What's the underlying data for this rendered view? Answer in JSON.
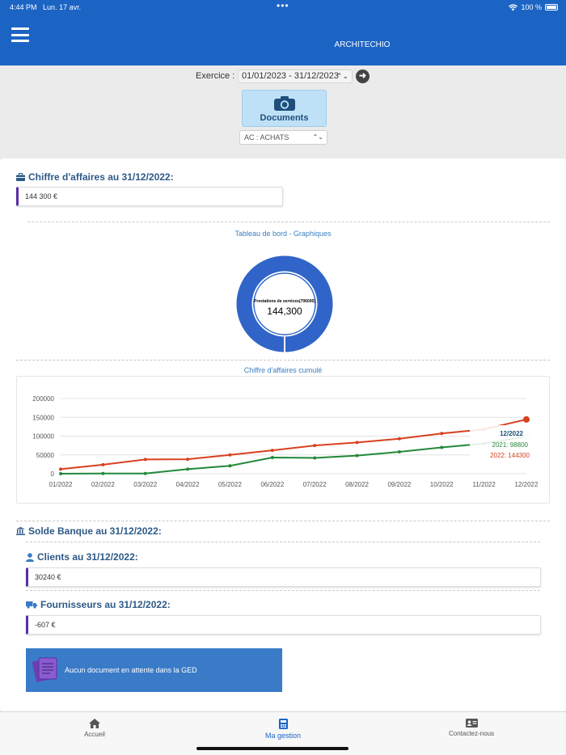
{
  "status_bar": {
    "time": "4:44 PM",
    "date": "Lun. 17 avr.",
    "battery": "100 %"
  },
  "header": {
    "title": "ARCHITECHIO"
  },
  "exercice": {
    "label": "Exercice :",
    "value": "01/01/2023 - 31/12/2023"
  },
  "documents_button": {
    "label": "Documents"
  },
  "journal_select": {
    "value": "AC : ACHATS"
  },
  "ca": {
    "title": "Chiffre d'affaires au 31/12/2022:",
    "value": "144 300 €"
  },
  "dashboard": {
    "caption": "Tableau de bord - Graphiques",
    "donut_label": "Prestations de services(706000)",
    "donut_value": "144,300",
    "line_caption": "Chiffre d'affaires cumulé"
  },
  "colors": {
    "brand": "#1c64c4",
    "series_2021": "#23883a",
    "series_2022": "#d8401f",
    "donut": "#3064c8"
  },
  "chart_data": {
    "type": "line",
    "categories": [
      "01/2022",
      "02/2022",
      "03/2022",
      "04/2022",
      "05/2022",
      "06/2022",
      "07/2022",
      "08/2022",
      "09/2022",
      "10/2022",
      "11/2022",
      "12/2022"
    ],
    "series": [
      {
        "name": "2022",
        "values": [
          12000,
          24000,
          38000,
          38500,
          50000,
          62000,
          75000,
          83000,
          93000,
          107000,
          118000,
          144300
        ]
      },
      {
        "name": "2021",
        "values": [
          0,
          500,
          500,
          12000,
          21000,
          43000,
          42000,
          48000,
          58000,
          70000,
          80000,
          98800
        ]
      }
    ],
    "yticks": [
      "200000",
      "150000",
      "100000",
      "50000",
      "0"
    ],
    "ylim": [
      0,
      200000
    ],
    "tooltip": {
      "title": "12/2022",
      "line_2021": "2021: 98800",
      "line_2022": "2022: 144300"
    },
    "grid": true
  },
  "solde_banque": {
    "title": "Solde Banque au 31/12/2022:"
  },
  "clients": {
    "title": "Clients au 31/12/2022:",
    "value": "30240 €"
  },
  "fournisseurs": {
    "title": "Fournisseurs au 31/12/2022:",
    "value": "-607 €"
  },
  "ged": {
    "label": "Aucun document en attente dans la GED"
  },
  "tabs": [
    {
      "label": "Accueil"
    },
    {
      "label": "Ma gestion"
    },
    {
      "label": "Contactez-nous"
    }
  ]
}
